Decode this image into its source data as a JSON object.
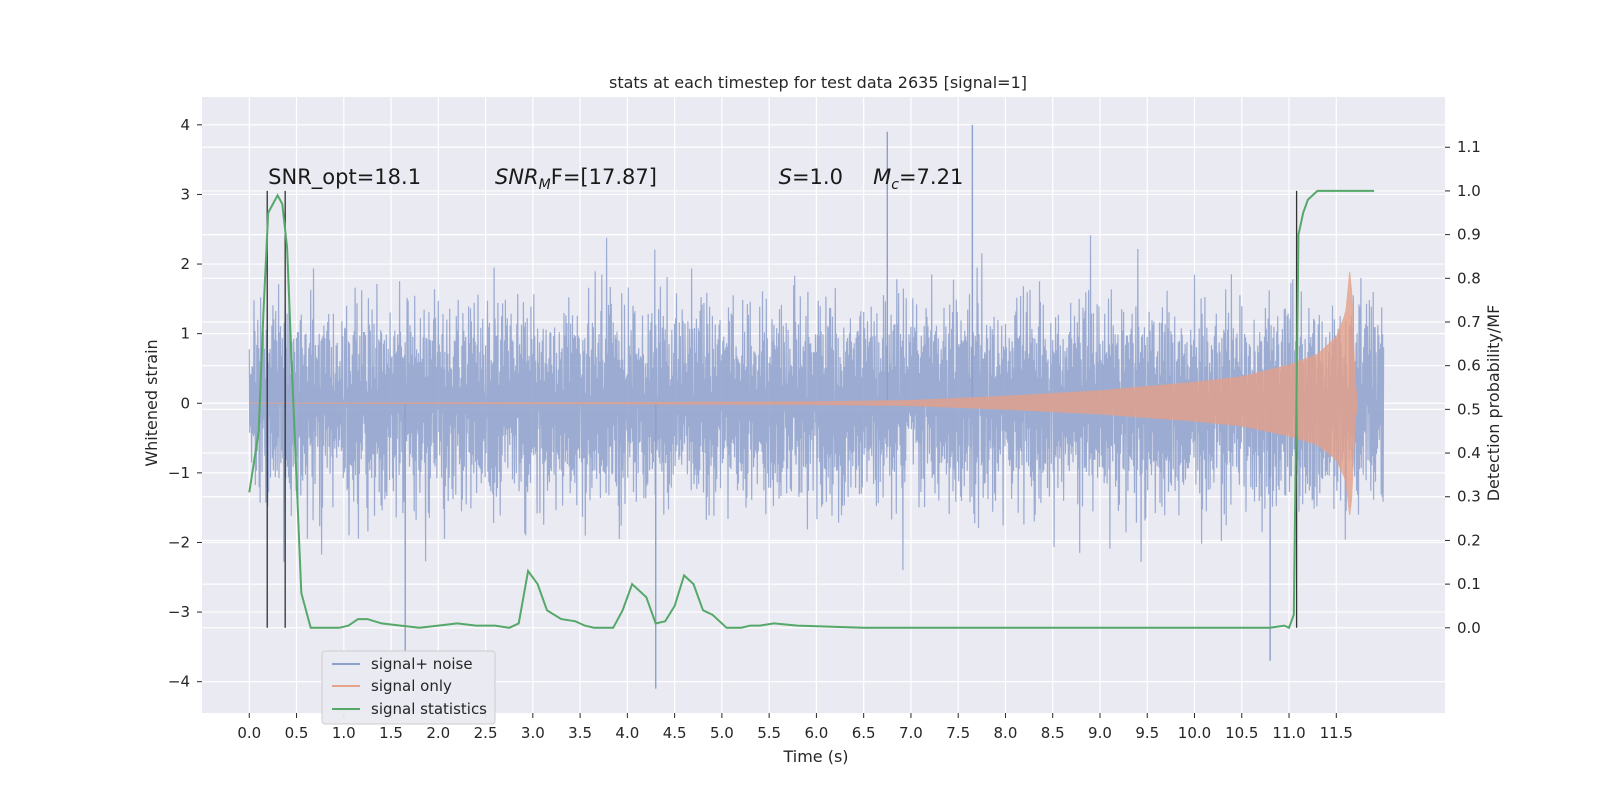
{
  "chart_data": {
    "type": "line",
    "title": "stats at each timestep for test data 2635 [signal=1]",
    "xlabel": "Time (s)",
    "ylabel": "Whitened strain",
    "y2label": "Detection probability/MF",
    "xlim": [
      -0.5,
      12.65
    ],
    "ylim": [
      -4.45,
      4.4
    ],
    "y2lim": [
      -0.195,
      1.215
    ],
    "x_ticks": [
      0.0,
      0.5,
      1.0,
      1.5,
      2.0,
      2.5,
      3.0,
      3.5,
      4.0,
      4.5,
      5.0,
      5.5,
      6.0,
      6.5,
      7.0,
      7.5,
      8.0,
      8.5,
      9.0,
      9.5,
      10.0,
      10.5,
      11.0,
      11.5
    ],
    "x_tick_labels": [
      "0.0",
      "0.5",
      "1.0",
      "1.5",
      "2.0",
      "2.5",
      "3.0",
      "3.5",
      "4.0",
      "4.5",
      "5.0",
      "5.5",
      "6.0",
      "6.5",
      "7.0",
      "7.5",
      "8.0",
      "8.5",
      "9.0",
      "9.5",
      "10.0",
      "10.5",
      "11.0",
      "11.5"
    ],
    "y_ticks": [
      -4,
      -3,
      -2,
      -1,
      0,
      1,
      2,
      3,
      4
    ],
    "y_tick_labels": [
      "−4",
      "−3",
      "−2",
      "−1",
      "0",
      "1",
      "2",
      "3",
      "4"
    ],
    "y2_ticks": [
      0.0,
      0.1,
      0.2,
      0.3,
      0.4,
      0.5,
      0.6,
      0.7,
      0.8,
      0.9,
      1.0,
      1.1
    ],
    "y2_tick_labels": [
      "0.0",
      "0.1",
      "0.2",
      "0.3",
      "0.4",
      "0.5",
      "0.6",
      "0.7",
      "0.8",
      "0.9",
      "1.0",
      "1.1"
    ],
    "grid": true,
    "legend_position": "lower-left",
    "annotations": [
      {
        "text": "SNR_opt=18.1",
        "x": 0.2,
        "y": 3.15
      },
      {
        "text": "SNR_MF=[17.87]",
        "base": "SNR",
        "sub": "M",
        "rest": "F=[17.87]",
        "x": 2.6,
        "y": 3.15
      },
      {
        "text": "S=1.0",
        "base": "S",
        "sub": "",
        "rest": "=1.0",
        "x": 5.6,
        "y": 3.15
      },
      {
        "text": "M_c=7.21",
        "base": "M",
        "sub": "c",
        "rest": "=7.21",
        "x": 6.6,
        "y": 3.15
      }
    ],
    "vertical_lines": [
      {
        "x": 0.19,
        "y2_from": 0.0,
        "y2_to": 1.0
      },
      {
        "x": 0.38,
        "y2_from": 0.0,
        "y2_to": 1.0
      },
      {
        "x": 11.08,
        "y2_from": 0.0,
        "y2_to": 1.0
      }
    ],
    "series": [
      {
        "name": "signal+ noise",
        "color": "#8da0cb",
        "axis": "left",
        "x_range": [
          0.0,
          12.0
        ],
        "band_upper": 2.2,
        "band_lower": -2.2,
        "peaks": [
          {
            "x": 6.75,
            "y": 3.9
          },
          {
            "x": 7.65,
            "y": 4.0
          },
          {
            "x": 4.3,
            "y": -4.1
          },
          {
            "x": 1.65,
            "y": -3.6
          },
          {
            "x": 10.8,
            "y": -3.7
          }
        ]
      },
      {
        "name": "signal only",
        "color": "#e5a18a",
        "axis": "left",
        "x": [
          0.0,
          2.0,
          4.0,
          6.0,
          7.0,
          8.0,
          9.0,
          10.0,
          10.5,
          11.0,
          11.3,
          11.5,
          11.6,
          11.65,
          11.7,
          11.72
        ],
        "envelope": [
          0.0,
          0.005,
          0.01,
          0.02,
          0.04,
          0.1,
          0.18,
          0.3,
          0.38,
          0.55,
          0.7,
          0.95,
          1.3,
          2.0,
          0.3,
          0.05
        ]
      },
      {
        "name": "signal statistics",
        "color": "#55a868",
        "axis": "right",
        "x": [
          0.0,
          0.1,
          0.15,
          0.2,
          0.25,
          0.3,
          0.35,
          0.4,
          0.45,
          0.55,
          0.65,
          0.8,
          0.95,
          1.05,
          1.15,
          1.25,
          1.4,
          1.6,
          1.8,
          2.0,
          2.2,
          2.4,
          2.6,
          2.75,
          2.85,
          2.95,
          3.05,
          3.15,
          3.3,
          3.45,
          3.55,
          3.65,
          3.75,
          3.85,
          3.95,
          4.05,
          4.2,
          4.3,
          4.4,
          4.5,
          4.6,
          4.7,
          4.8,
          4.9,
          5.05,
          5.2,
          5.3,
          5.4,
          5.55,
          5.8,
          6.5,
          7.5,
          8.5,
          9.5,
          10.0,
          10.5,
          10.8,
          10.95,
          11.0,
          11.05,
          11.1,
          11.15,
          11.2,
          11.3,
          11.4,
          11.5,
          11.7,
          11.9
        ],
        "values": [
          0.31,
          0.45,
          0.72,
          0.95,
          0.97,
          0.99,
          0.97,
          0.87,
          0.6,
          0.08,
          0.0,
          0.0,
          0.0,
          0.005,
          0.02,
          0.02,
          0.01,
          0.005,
          0.0,
          0.005,
          0.01,
          0.005,
          0.005,
          0.0,
          0.01,
          0.13,
          0.1,
          0.04,
          0.02,
          0.015,
          0.005,
          0.0,
          0.0,
          0.0,
          0.04,
          0.1,
          0.07,
          0.01,
          0.015,
          0.05,
          0.12,
          0.1,
          0.04,
          0.03,
          0.0,
          0.0,
          0.005,
          0.005,
          0.01,
          0.005,
          0.0,
          0.0,
          0.0,
          0.0,
          0.0,
          0.0,
          0.0,
          0.005,
          0.0,
          0.03,
          0.9,
          0.95,
          0.98,
          1.0,
          1.0,
          1.0,
          1.0,
          1.0
        ]
      }
    ]
  }
}
